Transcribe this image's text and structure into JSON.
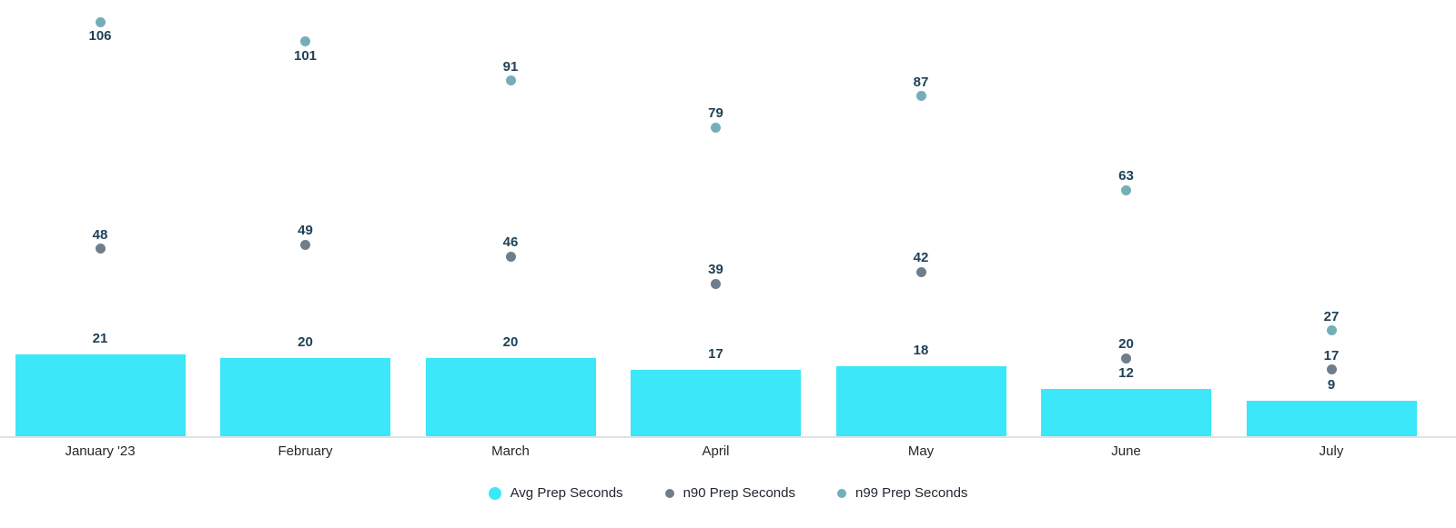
{
  "chart_data": {
    "type": "bar",
    "subtype": "bar-with-scatter-overlay",
    "title": "",
    "categories": [
      "January '23",
      "February",
      "March",
      "April",
      "May",
      "June",
      "July"
    ],
    "series": [
      {
        "name": "Avg Prep Seconds",
        "render": "bar",
        "color": "#3be7f8",
        "values": [
          21,
          20,
          20,
          17,
          18,
          12,
          9
        ]
      },
      {
        "name": "n90 Prep Seconds",
        "render": "scatter",
        "color": "#6e7e8c",
        "values": [
          48,
          49,
          46,
          39,
          42,
          20,
          17
        ]
      },
      {
        "name": "n99 Prep Seconds",
        "render": "scatter",
        "color": "#74aeb8",
        "values": [
          106,
          101,
          91,
          79,
          87,
          63,
          27
        ]
      }
    ],
    "xlabel": "",
    "ylabel": "",
    "ylim": [
      0,
      112
    ],
    "grid": false,
    "y_axis_visible": false,
    "data_labels": true,
    "legend_position": "bottom-center",
    "colors": {
      "annotation_text": "#1e4156",
      "axis_label_text": "#23282d",
      "legend_text": "#202730",
      "baseline": "#dfe3e8",
      "background": "#ffffff"
    }
  }
}
